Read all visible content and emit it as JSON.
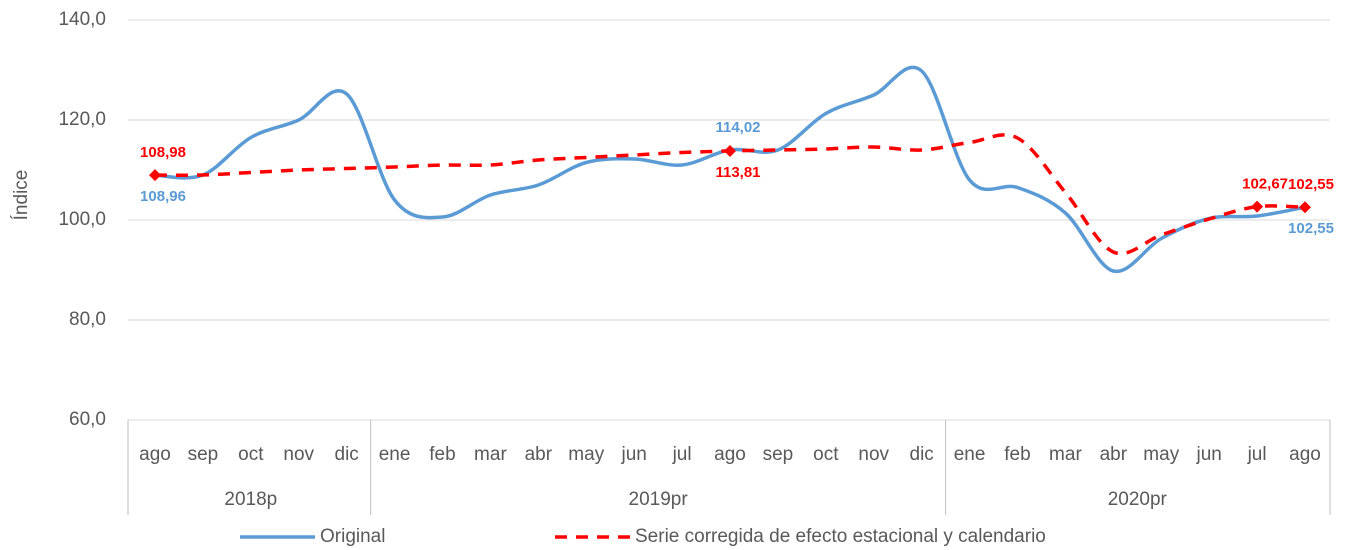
{
  "chart_data": {
    "type": "line",
    "y_label": "Índice",
    "categories": [
      "ago",
      "sep",
      "oct",
      "nov",
      "dic",
      "ene",
      "feb",
      "mar",
      "abr",
      "may",
      "jun",
      "jul",
      "ago",
      "sep",
      "oct",
      "nov",
      "dic",
      "ene",
      "feb",
      "mar",
      "abr",
      "may",
      "jun",
      "jul",
      "ago"
    ],
    "groups": [
      {
        "label": "2018p",
        "count": 5
      },
      {
        "label": "2019pr",
        "count": 12
      },
      {
        "label": "2020pr",
        "count": 8
      }
    ],
    "series": [
      {
        "name": "Original",
        "color": "#5b9bd5",
        "dash": false,
        "values": [
          108.96,
          109,
          116.5,
          120,
          125.2,
          104,
          100.6,
          105,
          107,
          111.5,
          112.2,
          111,
          114.02,
          114,
          121.3,
          125,
          129.8,
          108,
          106.5,
          101.4,
          89.8,
          96.3,
          100.3,
          100.8,
          102.55
        ],
        "value_labels": [
          "108,96",
          null,
          null,
          null,
          null,
          null,
          null,
          null,
          null,
          null,
          null,
          null,
          "114,02",
          null,
          null,
          null,
          null,
          null,
          null,
          null,
          null,
          null,
          null,
          null,
          "102,55"
        ]
      },
      {
        "name": "Serie corregida de efecto estacional y calendario",
        "color": "#ff0000",
        "dash": true,
        "values": [
          108.98,
          109,
          109.5,
          110,
          110.3,
          110.6,
          111,
          111,
          112,
          112.5,
          113,
          113.5,
          113.81,
          114,
          114.2,
          114.6,
          114,
          115.5,
          116.4,
          105.5,
          93.6,
          97,
          100.2,
          102.67,
          102.55
        ],
        "value_labels": [
          "108,98",
          null,
          null,
          null,
          null,
          null,
          null,
          null,
          null,
          null,
          null,
          null,
          "113,81",
          null,
          null,
          null,
          null,
          null,
          null,
          null,
          null,
          null,
          null,
          "102,67",
          "102,55"
        ]
      }
    ],
    "ylim": [
      60,
      140
    ],
    "yticks": [
      {
        "value": 60,
        "label": "60,0"
      },
      {
        "value": 80,
        "label": "80,0"
      },
      {
        "value": 100,
        "label": "100,0"
      },
      {
        "value": 120,
        "label": "120,0"
      },
      {
        "value": 140,
        "label": "140,0"
      }
    ],
    "grid": true,
    "legend": "bottom"
  }
}
